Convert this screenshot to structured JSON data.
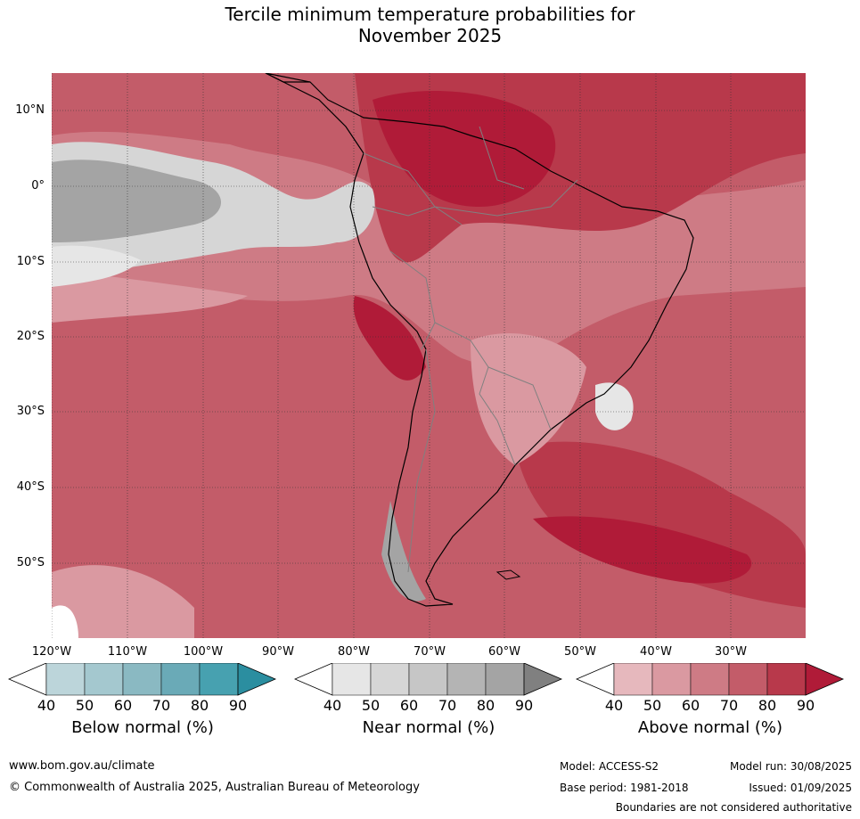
{
  "title_line1": "Tercile minimum temperature probabilities for",
  "title_line2": "November 2025",
  "lat_labels": [
    "10°N",
    "0°",
    "10°S",
    "20°S",
    "30°S",
    "40°S",
    "50°S"
  ],
  "lon_labels": [
    "120°W",
    "110°W",
    "100°W",
    "90°W",
    "80°W",
    "70°W",
    "60°W",
    "50°W",
    "40°W",
    "30°W"
  ],
  "colorbars": [
    {
      "label": "Below normal (%)",
      "ticks": [
        "40",
        "50",
        "60",
        "70",
        "80",
        "90"
      ],
      "colors": [
        "#ffffff",
        "#bcd5da",
        "#a4c8cf",
        "#8ab9c2",
        "#6aaab7",
        "#47a1b0",
        "#2b8ea0"
      ]
    },
    {
      "label": "Near normal (%)",
      "ticks": [
        "40",
        "50",
        "60",
        "70",
        "80",
        "90"
      ],
      "colors": [
        "#ffffff",
        "#e6e6e6",
        "#d6d6d6",
        "#c6c6c6",
        "#b4b4b4",
        "#a4a4a4",
        "#808080"
      ]
    },
    {
      "label": "Above normal (%)",
      "ticks": [
        "40",
        "50",
        "60",
        "70",
        "80",
        "90"
      ],
      "colors": [
        "#ffffff",
        "#e6b8bd",
        "#da99a1",
        "#ce7b85",
        "#c35c69",
        "#b8394b",
        "#b01b38"
      ]
    }
  ],
  "footer": {
    "website": "www.bom.gov.au/climate",
    "copyright": "© Commonwealth of Australia 2025, Australian Bureau of Meteorology",
    "model": "Model: ACCESS-S2",
    "base_period": "Base period: 1981-2018",
    "model_run": "Model run: 30/08/2025",
    "issued": "Issued: 01/09/2025",
    "disclaimer": "Boundaries are not considered authoritative"
  }
}
